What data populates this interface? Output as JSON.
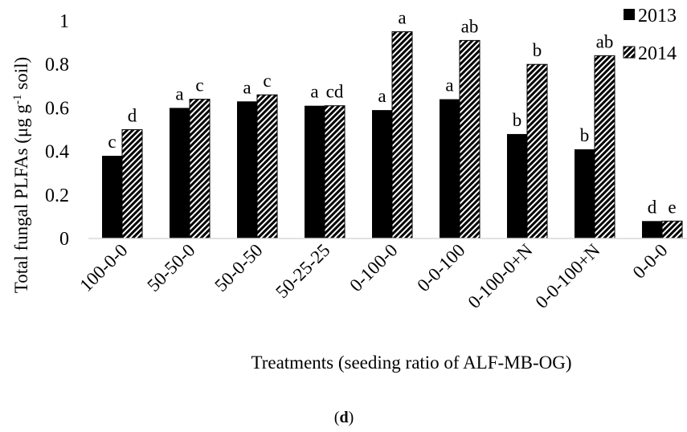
{
  "chart_data": {
    "type": "bar",
    "xlabel": "Treatments (seeding ratio of ALF-MB-OG)",
    "ylabel_main": "Total fungal PLFAs (μg g",
    "ylabel_sup": "-1",
    "ylabel_tail": " soil)",
    "ylim": [
      0,
      1
    ],
    "yticks": [
      {
        "value": 0,
        "label": "0"
      },
      {
        "value": 0.2,
        "label": "0.2"
      },
      {
        "value": 0.4,
        "label": "0.4"
      },
      {
        "value": 0.6,
        "label": "0.6"
      },
      {
        "value": 0.8,
        "label": "0.8"
      },
      {
        "value": 1,
        "label": "1"
      }
    ],
    "categories": [
      "100-0-0",
      "50-50-0",
      "50-0-50",
      "50-25-25",
      "0-100-0",
      "0-0-100",
      "0-100-0+N",
      "0-0-100+N",
      "0-0-0"
    ],
    "series": [
      {
        "name": "2013",
        "fill": "solid",
        "values": [
          0.38,
          0.6,
          0.63,
          0.61,
          0.59,
          0.64,
          0.48,
          0.41,
          0.08
        ],
        "letters": [
          "c",
          "a",
          "a",
          "a",
          "a",
          "a",
          "b",
          "b",
          "d"
        ]
      },
      {
        "name": "2014",
        "fill": "diagonal-hatch",
        "values": [
          0.5,
          0.64,
          0.66,
          0.61,
          0.95,
          0.91,
          0.8,
          0.84,
          0.08
        ],
        "letters": [
          "d",
          "c",
          "c",
          "cd",
          "a",
          "ab",
          "b",
          "ab",
          "e"
        ]
      }
    ],
    "legend_position": "top-right",
    "grid": false,
    "colors": {
      "bar": "#000000",
      "background": "#ffffff"
    }
  },
  "panel_label": "d"
}
